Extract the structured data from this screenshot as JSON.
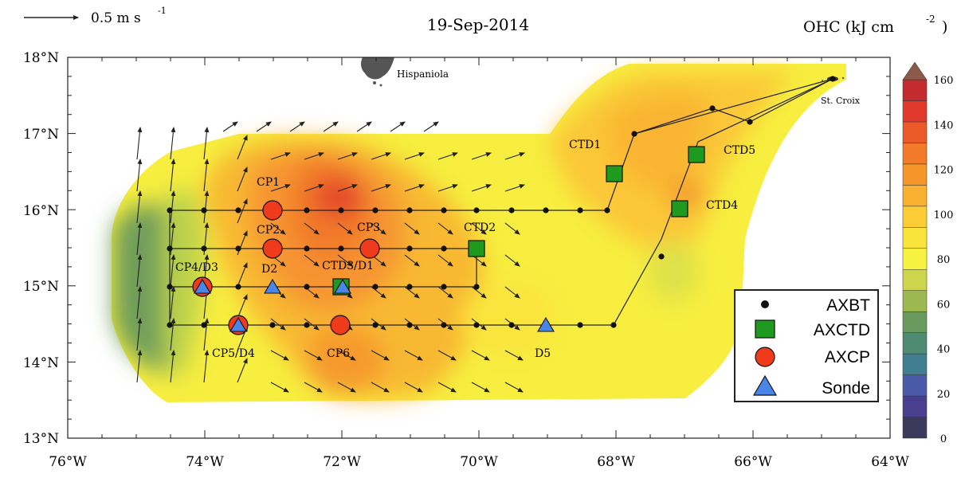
{
  "header": {
    "vector_scale_label": "0.5 m s",
    "vector_scale_exp": "-1",
    "date": "19-Sep-2014",
    "colorbar_title": "OHC (kJ cm",
    "colorbar_title_exp": "-2",
    "colorbar_title_close": ")"
  },
  "axes": {
    "lon_labels": [
      "76°W",
      "74°W",
      "72°W",
      "70°W",
      "68°W",
      "66°W",
      "64°W"
    ],
    "lat_labels": [
      "18°N",
      "17°N",
      "16°N",
      "15°N",
      "14°N",
      "13°N"
    ]
  },
  "places": {
    "hispaniola": "Hispaniola",
    "st_croix": "St. Croix"
  },
  "station_labels": {
    "cp1": "CP1",
    "cp2": "CP2",
    "cp3": "CP3",
    "cp4d3": "CP4/D3",
    "d2": "D2",
    "ctd3d1": "CTD3/D1",
    "cp5d4": "CP5/D4",
    "cp6": "CP6",
    "d5": "D5",
    "ctd1": "CTD1",
    "ctd2": "CTD2",
    "ctd4": "CTD4",
    "ctd5": "CTD5"
  },
  "legend": {
    "axbt": "AXBT",
    "axctd": "AXCTD",
    "axcp": "AXCP",
    "sonde": "Sonde"
  },
  "colorbar": {
    "ticks": [
      "0",
      "20",
      "40",
      "60",
      "80",
      "100",
      "120",
      "140",
      "160"
    ],
    "colors": [
      "#3c3a5c",
      "#4a3f8f",
      "#4a5aa8",
      "#3f7f90",
      "#4f8a72",
      "#6b9a5e",
      "#9cb94f",
      "#cdd64a",
      "#f7f13f",
      "#fae43b",
      "#fbcc36",
      "#f9b030",
      "#f6962a",
      "#f27a28",
      "#ec5a2a",
      "#e0392c",
      "#c42b2f",
      "#8c5a4a"
    ]
  },
  "colors": {
    "axbt": "#111111",
    "axctd": "#1f9a1f",
    "axcp": "#f03a1c",
    "sonde": "#4a86e8"
  }
}
